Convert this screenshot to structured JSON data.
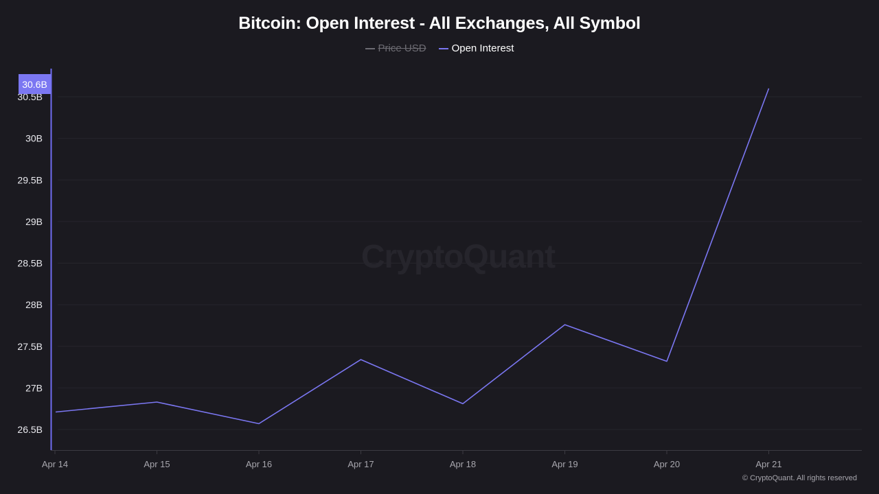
{
  "title": "Bitcoin: Open Interest - All Exchanges, All Symbol",
  "legend": [
    {
      "label": "Price USD",
      "color": "#6d6c73",
      "hidden": true
    },
    {
      "label": "Open Interest",
      "color": "#7b77f2",
      "hidden": false
    }
  ],
  "watermark": "CryptoQuant",
  "copyright": "© CryptoQuant. All rights reserved",
  "y_marker": {
    "label": "30.6B",
    "color": "#7b77f2"
  },
  "colors": {
    "background": "#1b1a20",
    "series": "#7b77f2",
    "axis": "#6f6cf0",
    "grid": "#26252c",
    "xaxis": "#3c3b42"
  },
  "chart_data": {
    "type": "line",
    "title": "Bitcoin: Open Interest - All Exchanges, All Symbol",
    "xlabel": "",
    "ylabel": "",
    "categories": [
      "Apr 14",
      "Apr 15",
      "Apr 16",
      "Apr 17",
      "Apr 18",
      "Apr 19",
      "Apr 20",
      "Apr 21"
    ],
    "series": [
      {
        "name": "Open Interest",
        "values": [
          26.71,
          26.83,
          26.57,
          27.34,
          26.81,
          27.76,
          27.32,
          30.6
        ],
        "unit": "B"
      },
      {
        "name": "Price USD",
        "values": [],
        "hidden": true
      }
    ],
    "yticks": [
      "26.5B",
      "27B",
      "27.5B",
      "28B",
      "28.5B",
      "29B",
      "29.5B",
      "30B",
      "30.5B"
    ],
    "ytick_values": [
      26.5,
      27,
      27.5,
      28,
      28.5,
      29,
      29.5,
      30,
      30.5
    ],
    "ylim": [
      26.3,
      30.8
    ],
    "grid": true,
    "legend_position": "top-center",
    "last_value_marker": "30.6B"
  }
}
